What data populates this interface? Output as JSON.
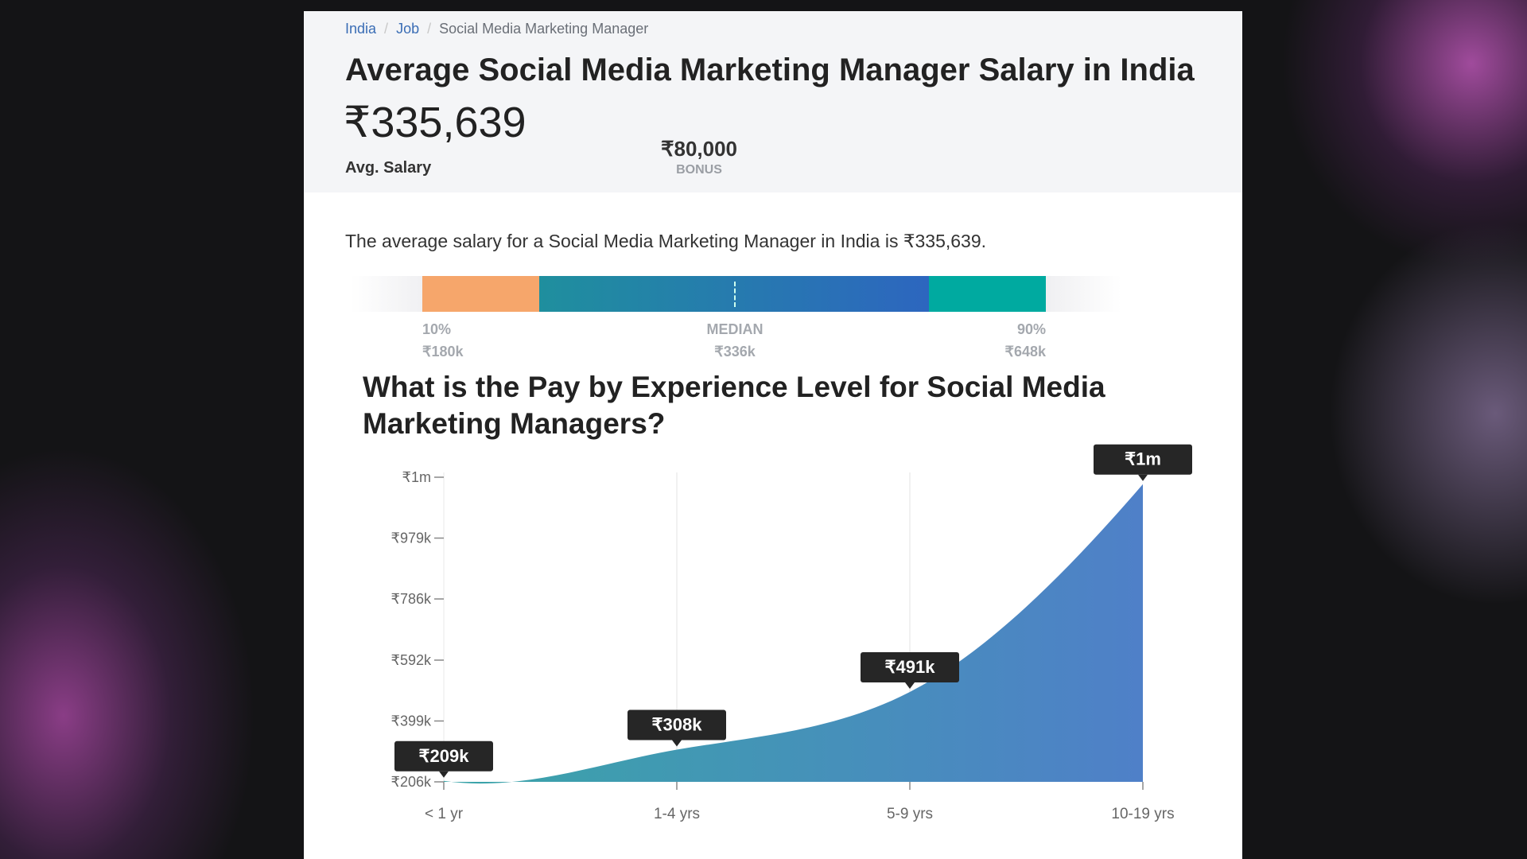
{
  "breadcrumb": [
    "India",
    "Job",
    "Social Media Marketing Manager"
  ],
  "title": "Average Social Media Marketing Manager Salary in India",
  "avg_salary": "₹335,639",
  "avg_label": "Avg. Salary",
  "bonus": {
    "value": "₹80,000",
    "label": "BONUS"
  },
  "description": "The average salary for a Social Media Marketing Manager in India is ₹335,639.",
  "percentiles": {
    "p10": {
      "label": "10%",
      "value": "₹180k"
    },
    "median": {
      "label": "MEDIAN",
      "value": "₹336k"
    },
    "p90": {
      "label": "90%",
      "value": "₹648k"
    }
  },
  "colors": {
    "p10": "#f6a66b",
    "mid_start": "#1f8f9e",
    "mid_end": "#2d66bf",
    "p90": "#00aaa0"
  },
  "section_title": "What is the Pay by Experience Level for Social Media Marketing Managers?",
  "chart_data": {
    "type": "area",
    "categories": [
      "< 1 yr",
      "1-4 yrs",
      "5-9 yrs",
      "10-19 yrs"
    ],
    "values": [
      209,
      308,
      491,
      1150
    ],
    "value_labels": [
      "₹209k",
      "₹308k",
      "₹491k",
      "₹1m"
    ],
    "unit": "thousand INR",
    "ylim": [
      206,
      1172
    ],
    "yticks": [
      206,
      399,
      592,
      786,
      979,
      1172
    ],
    "ytick_labels": [
      "₹206k",
      "₹399k",
      "₹592k",
      "₹786k",
      "₹979k",
      "₹1m"
    ],
    "grid": "vertical"
  }
}
